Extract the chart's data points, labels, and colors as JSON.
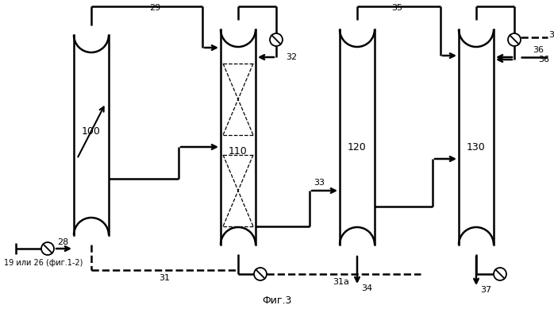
{
  "fig_label": "Фиг.3",
  "background": "#ffffff",
  "lw": 1.8,
  "font_size": 8
}
